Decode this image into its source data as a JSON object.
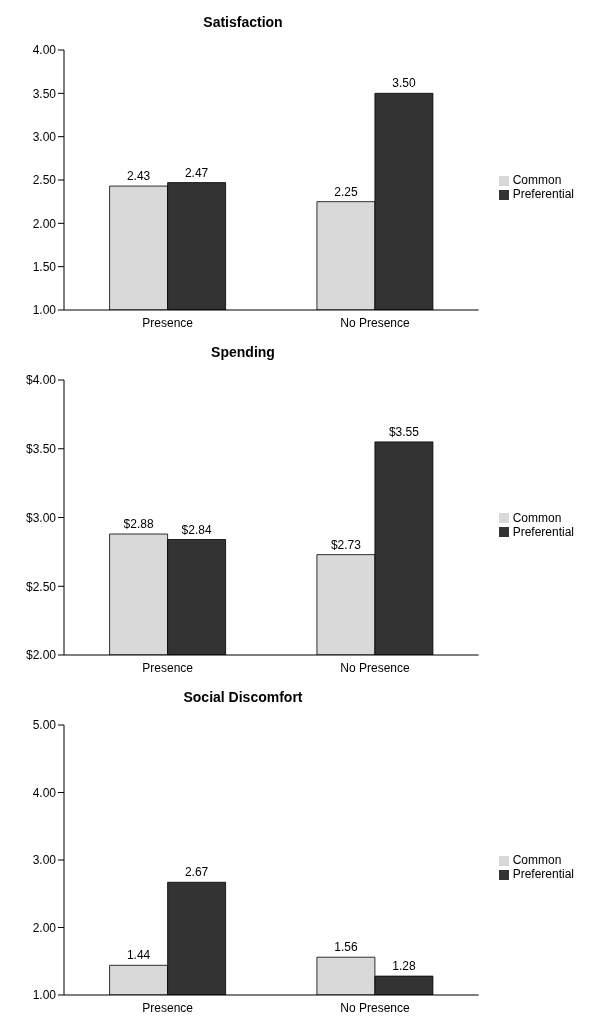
{
  "chart_data": [
    {
      "type": "bar",
      "title": "Satisfaction",
      "categories": [
        "Presence",
        "No Presence"
      ],
      "series": [
        {
          "name": "Common",
          "color": "#d9d9d9",
          "values": [
            2.43,
            2.25
          ],
          "value_labels": [
            "2.43",
            "2.25"
          ]
        },
        {
          "name": "Preferential",
          "color": "#333333",
          "values": [
            2.47,
            3.5
          ],
          "value_labels": [
            "2.47",
            "3.50"
          ]
        }
      ],
      "ylim": [
        1,
        4
      ],
      "yticks": [
        {
          "value": 1,
          "label": "1.00"
        },
        {
          "value": 1.5,
          "label": "1.50"
        },
        {
          "value": 2,
          "label": "2.00"
        },
        {
          "value": 2.5,
          "label": "2.50"
        },
        {
          "value": 3,
          "label": "3.00"
        },
        {
          "value": 3.5,
          "label": "3.50"
        },
        {
          "value": 4,
          "label": "4.00"
        }
      ],
      "grid": false,
      "legend": "right"
    },
    {
      "type": "bar",
      "title": "Spending",
      "categories": [
        "Presence",
        "No Presence"
      ],
      "series": [
        {
          "name": "Common",
          "color": "#d9d9d9",
          "values": [
            2.88,
            2.73
          ],
          "value_labels": [
            "$2.88",
            "$2.73"
          ]
        },
        {
          "name": "Preferential",
          "color": "#333333",
          "values": [
            2.84,
            3.55
          ],
          "value_labels": [
            "$2.84",
            "$3.55"
          ]
        }
      ],
      "ylim": [
        2,
        4
      ],
      "yticks": [
        {
          "value": 2,
          "label": "$2.00"
        },
        {
          "value": 2.5,
          "label": "$2.50"
        },
        {
          "value": 3,
          "label": "$3.00"
        },
        {
          "value": 3.5,
          "label": "$3.50"
        },
        {
          "value": 4,
          "label": "$4.00"
        }
      ],
      "grid": false,
      "legend": "right"
    },
    {
      "type": "bar",
      "title": "Social Discomfort",
      "categories": [
        "Presence",
        "No Presence"
      ],
      "series": [
        {
          "name": "Common",
          "color": "#d9d9d9",
          "values": [
            1.44,
            1.56
          ],
          "value_labels": [
            "1.44",
            "1.56"
          ]
        },
        {
          "name": "Preferential",
          "color": "#333333",
          "values": [
            2.67,
            1.28
          ],
          "value_labels": [
            "2.67",
            "1.28"
          ]
        }
      ],
      "ylim": [
        1,
        5
      ],
      "yticks": [
        {
          "value": 1,
          "label": "1.00"
        },
        {
          "value": 2,
          "label": "2.00"
        },
        {
          "value": 3,
          "label": "3.00"
        },
        {
          "value": 4,
          "label": "4.00"
        },
        {
          "value": 5,
          "label": "5.00"
        }
      ],
      "grid": false,
      "legend": "right"
    }
  ]
}
